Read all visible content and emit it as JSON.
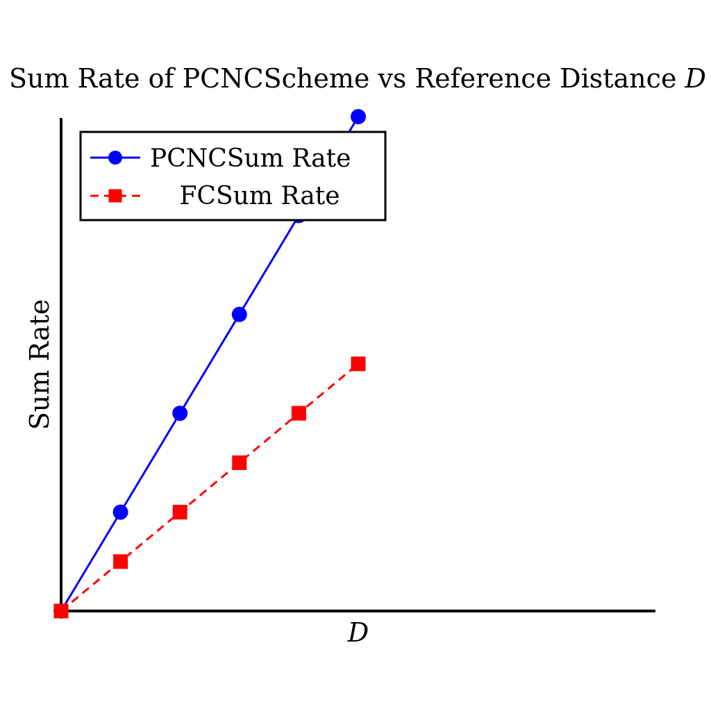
{
  "chart_data": {
    "type": "line",
    "title_main": "Sum Rate of PCNCScheme vs Reference Distance ",
    "title_symbol": "D",
    "xlabel": "D",
    "ylabel": "Sum Rate",
    "x": [
      0,
      1,
      2,
      3,
      4,
      5
    ],
    "xlim": [
      0,
      10
    ],
    "ylim": [
      0,
      10
    ],
    "grid": false,
    "legend_position": "upper-left",
    "series": [
      {
        "name": "PCNCSum Rate",
        "values": [
          0,
          2,
          4,
          6,
          8,
          10
        ],
        "color": "#0000ff",
        "marker": "circle",
        "line_style": "solid"
      },
      {
        "name": "FCSum Rate",
        "values": [
          0,
          1,
          2,
          3,
          4,
          5
        ],
        "color": "#ff0000",
        "marker": "square",
        "line_style": "dashed"
      }
    ]
  }
}
